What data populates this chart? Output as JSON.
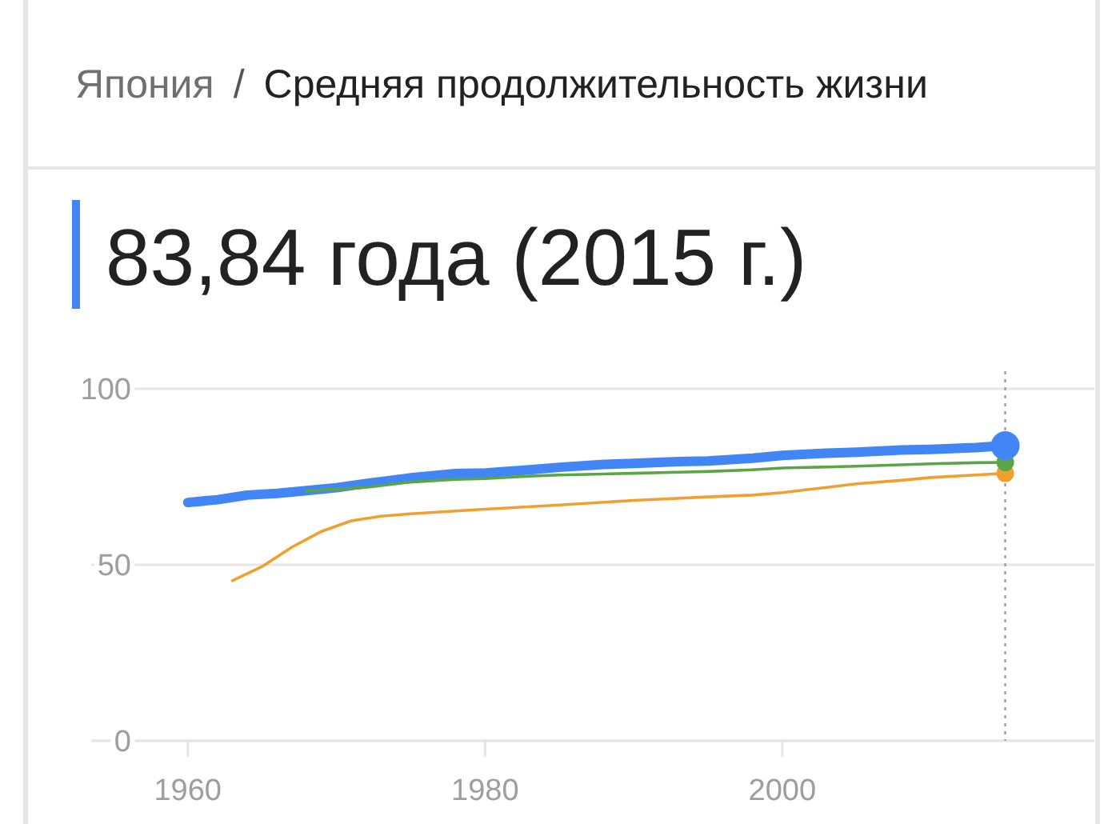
{
  "chart_data": {
    "type": "line",
    "title": "Япония / Средняя продолжительность жизни",
    "subtitle": "83,84 года (2015 г.)",
    "xlim": [
      1953.5,
      2021
    ],
    "xticks": [
      1960,
      1980,
      2000
    ],
    "ylim": [
      0,
      105
    ],
    "yticks": [
      0,
      50,
      100
    ],
    "grid": "y",
    "series": [
      {
        "color": "#4285f4",
        "x": [
          1960,
          1962,
          1964,
          1966,
          1968,
          1970,
          1972,
          1975,
          1978,
          1980,
          1983,
          1985,
          1988,
          1990,
          1993,
          1995,
          1998,
          2000,
          2003,
          2005,
          2008,
          2010,
          2013,
          2015
        ],
        "values": [
          67.7,
          68.5,
          69.8,
          70.3,
          71.1,
          71.9,
          73.1,
          74.7,
          75.9,
          76.1,
          77.0,
          77.7,
          78.5,
          78.8,
          79.3,
          79.5,
          80.3,
          81.1,
          81.7,
          82.0,
          82.6,
          82.8,
          83.3,
          83.84
        ]
      },
      {
        "color": "#5aa545",
        "x": [
          1968,
          1970,
          1972,
          1975,
          1978,
          1980,
          1983,
          1985,
          1988,
          1990,
          1993,
          1995,
          1998,
          2000,
          2003,
          2005,
          2008,
          2010,
          2013,
          2015
        ],
        "values": [
          71.0,
          71.5,
          72.0,
          73.5,
          74.3,
          74.5,
          75.2,
          75.5,
          75.8,
          76.0,
          76.3,
          76.5,
          77.0,
          77.5,
          77.8,
          78.0,
          78.4,
          78.7,
          79.0,
          79.1
        ]
      },
      {
        "color": "#f0a030",
        "x": [
          1963,
          1965,
          1967,
          1969,
          1971,
          1973,
          1975,
          1978,
          1980,
          1985,
          1990,
          1995,
          1998,
          2000,
          2003,
          2005,
          2008,
          2010,
          2013,
          2015
        ],
        "values": [
          45.5,
          49.5,
          55.0,
          59.5,
          62.5,
          63.8,
          64.5,
          65.3,
          65.8,
          67.0,
          68.3,
          69.3,
          69.8,
          70.5,
          72.0,
          73.0,
          74.0,
          74.8,
          75.5,
          76.0
        ]
      },
      {
        "type": "scatter",
        "color": "#f0a030",
        "x": [
          2015
        ],
        "values": [
          76.0
        ]
      },
      {
        "type": "scatter",
        "color": "#5aa545",
        "x": [
          2015
        ],
        "values": [
          79.1
        ]
      },
      {
        "type": "scatter",
        "color": "#4285f4",
        "x": [
          2015
        ],
        "values": [
          83.84
        ]
      }
    ],
    "ref_lines": [
      {
        "axis": "x",
        "value": 2015,
        "color": "#9e9e9e",
        "line_style": "dotted"
      }
    ]
  }
}
